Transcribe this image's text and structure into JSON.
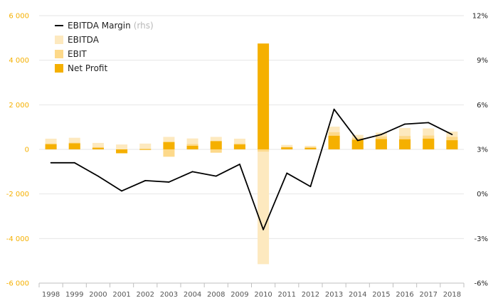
{
  "chart_data": {
    "type": "bar",
    "categories": [
      "1998",
      "1999",
      "2000",
      "2001",
      "2002",
      "2003",
      "2004",
      "2008",
      "2009",
      "2010",
      "2011",
      "2012",
      "2013",
      "2014",
      "2015",
      "2016",
      "2017",
      "2018"
    ],
    "series": [
      {
        "name": "EBITDA",
        "kind": "bar",
        "color": "#fde9bf",
        "values": [
          480,
          520,
          290,
          220,
          260,
          560,
          490,
          560,
          480,
          -5150,
          200,
          160,
          1020,
          650,
          750,
          960,
          940,
          800
        ]
      },
      {
        "name": "EBIT",
        "kind": "bar",
        "color": "#fdd98a",
        "values": [
          260,
          300,
          100,
          -180,
          20,
          -330,
          240,
          -150,
          260,
          -100,
          110,
          100,
          770,
          520,
          580,
          600,
          620,
          560
        ]
      },
      {
        "name": "Net Profit",
        "kind": "bar",
        "color": "#f5b000",
        "values": [
          230,
          270,
          70,
          -170,
          10,
          330,
          160,
          370,
          220,
          4750,
          90,
          70,
          610,
          430,
          460,
          450,
          480,
          410
        ]
      },
      {
        "name": "EBITDA Margin",
        "name_suffix": "(rhs)",
        "kind": "line",
        "axis": "right",
        "color": "#000000",
        "values": [
          2.1,
          2.1,
          1.2,
          0.2,
          0.9,
          0.8,
          1.5,
          1.2,
          2.0,
          -2.4,
          1.4,
          0.5,
          5.7,
          3.6,
          4.0,
          4.7,
          4.8,
          4.0
        ]
      }
    ],
    "y_left": {
      "ylim": [
        -6000,
        6000
      ],
      "ticks": [
        -6000,
        -4000,
        -2000,
        0,
        2000,
        4000,
        6000
      ],
      "tick_labels": [
        "-6 000",
        "-4 000",
        "-2 000",
        "0",
        "2 000",
        "4 000",
        "6 000"
      ]
    },
    "y_right": {
      "ylim": [
        -6,
        12
      ],
      "ticks": [
        -6,
        -3,
        0,
        3,
        6,
        9,
        12
      ],
      "tick_labels": [
        "-6%",
        "-3%",
        "0%",
        "3%",
        "6%",
        "9%",
        "12%"
      ]
    },
    "legend": {
      "placement": "top-left",
      "order": [
        "EBITDA Margin",
        "EBITDA",
        "EBIT",
        "Net Profit"
      ]
    },
    "grid": true
  }
}
